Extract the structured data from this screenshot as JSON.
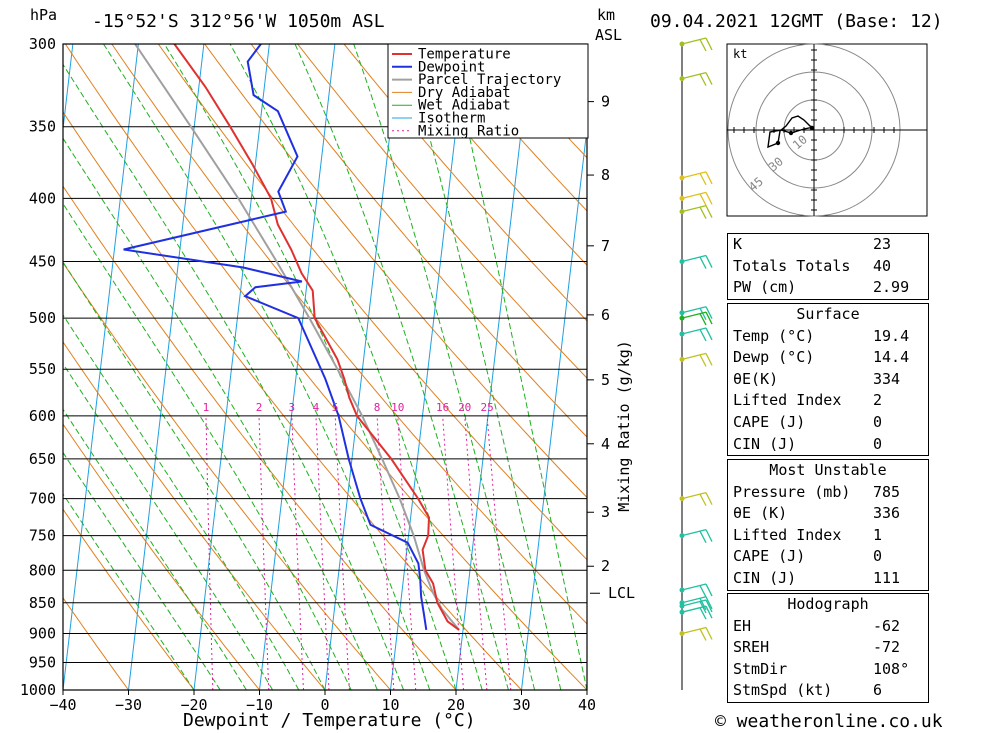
{
  "header": {
    "pressure_unit": "hPa",
    "location": "-15°52'S  312°56'W  1050m  ASL",
    "km_label": "km",
    "asl_label": "ASL",
    "datetime": "09.04.2021  12GMT  (Base: 12)"
  },
  "footer": {
    "copyright": "© weatheronline.co.uk"
  },
  "chart_data": {
    "type": "line",
    "title": "-15°52'S  312°56'W  1050m  ASL",
    "xlabel": "Dewpoint / Temperature (°C)",
    "ylabel": "hPa",
    "secondary_ylabel": "Mixing Ratio (g/kg)",
    "xlim": [
      -40,
      40
    ],
    "ylim": [
      1000,
      300
    ],
    "skew_per_log_p": 62.6,
    "x_ticks": [
      -40,
      -30,
      -20,
      -10,
      0,
      10,
      20,
      30,
      40
    ],
    "pressure_levels": [
      300,
      350,
      400,
      450,
      500,
      550,
      600,
      650,
      700,
      750,
      800,
      850,
      900,
      950,
      1000
    ],
    "km_ticks": [
      {
        "label": "2",
        "p": 794
      },
      {
        "label": "3",
        "p": 718
      },
      {
        "label": "4",
        "p": 632
      },
      {
        "label": "5",
        "p": 561
      },
      {
        "label": "6",
        "p": 497
      },
      {
        "label": "7",
        "p": 437
      },
      {
        "label": "8",
        "p": 383
      },
      {
        "label": "9",
        "p": 334
      }
    ],
    "lcl": {
      "label": "LCL",
      "p": 835
    },
    "mixing_ratio_labels": [
      "1",
      "2",
      "3",
      "4",
      "5",
      "8",
      "10",
      "16",
      "20",
      "25"
    ],
    "mixing_ratio_values": [
      1,
      2,
      3,
      4,
      5,
      8,
      10,
      16,
      20,
      25
    ],
    "legend": [
      "Temperature",
      "Dewpoint",
      "Parcel Trajectory",
      "Dry Adiabat",
      "Wet Adiabat",
      "Isotherm",
      "Mixing Ratio"
    ],
    "legend_placement": "top-center",
    "colors": {
      "temperature": "#e03030",
      "dewpoint": "#2030e0",
      "parcel": "#a0a0a0",
      "dry_adiabat": "#e08020",
      "wet_adiabat": "#20b020",
      "isotherm": "#20a0e0",
      "mixing_ratio": "#e020a0"
    },
    "series": [
      {
        "name": "Temperature",
        "points": [
          [
            894,
            19.4
          ],
          [
            880,
            17.5
          ],
          [
            850,
            15.6
          ],
          [
            820,
            14.6
          ],
          [
            800,
            13.2
          ],
          [
            770,
            12.4
          ],
          [
            750,
            13.0
          ],
          [
            725,
            12.8
          ],
          [
            700,
            10.8
          ],
          [
            650,
            6.0
          ],
          [
            600,
            0.0
          ],
          [
            580,
            -1.5
          ],
          [
            560,
            -2.6
          ],
          [
            540,
            -4.0
          ],
          [
            500,
            -8.2
          ],
          [
            475,
            -9.0
          ],
          [
            460,
            -11.0
          ],
          [
            440,
            -13.0
          ],
          [
            420,
            -15.5
          ],
          [
            400,
            -17.0
          ],
          [
            375,
            -20.5
          ],
          [
            350,
            -24.5
          ],
          [
            325,
            -29.0
          ],
          [
            300,
            -34.5
          ]
        ]
      },
      {
        "name": "Dewpoint",
        "points": [
          [
            894,
            14.4
          ],
          [
            870,
            13.8
          ],
          [
            840,
            13.0
          ],
          [
            815,
            12.6
          ],
          [
            790,
            12.0
          ],
          [
            760,
            10.0
          ],
          [
            735,
            4.0
          ],
          [
            700,
            2.0
          ],
          [
            650,
            -0.5
          ],
          [
            600,
            -2.8
          ],
          [
            560,
            -5.5
          ],
          [
            500,
            -10.7
          ],
          [
            480,
            -19.2
          ],
          [
            472,
            -17.8
          ],
          [
            467,
            -10.8
          ],
          [
            455,
            -20.0
          ],
          [
            440,
            -38.6
          ],
          [
            410,
            -14.5
          ],
          [
            395,
            -16.0
          ],
          [
            370,
            -13.7
          ],
          [
            340,
            -17.5
          ],
          [
            330,
            -21.5
          ],
          [
            310,
            -23.0
          ],
          [
            300,
            -21.3
          ]
        ]
      },
      {
        "name": "Parcel Trajectory",
        "points": [
          [
            894,
            19.4
          ],
          [
            860,
            16.4
          ],
          [
            835,
            14.8
          ],
          [
            800,
            13.0
          ],
          [
            750,
            10.8
          ],
          [
            700,
            8.0
          ],
          [
            650,
            4.6
          ],
          [
            600,
            0.8
          ],
          [
            550,
            -3.8
          ],
          [
            500,
            -9.0
          ],
          [
            450,
            -15.0
          ],
          [
            400,
            -22.0
          ],
          [
            350,
            -30.5
          ],
          [
            300,
            -40.5
          ]
        ]
      }
    ]
  },
  "hodograph": {
    "unit": "kt",
    "ring_labels": [
      "10",
      "30",
      "45"
    ]
  },
  "wind_profile": {
    "barb_pressures": [
      300,
      320,
      385,
      400,
      410,
      450,
      495,
      500,
      515,
      540,
      700,
      750,
      830,
      850,
      855,
      865,
      900
    ],
    "barb_colors": [
      "#a0c020",
      "#a0c020",
      "#e0c020",
      "#e0c020",
      "#a0c020",
      "#20c0a0",
      "#20c0a0",
      "#20b020",
      "#20c0a0",
      "#c0c020",
      "#c0c020",
      "#20c0a0",
      "#20c0a0",
      "#20c0a0",
      "#20c0a0",
      "#20c0a0",
      "#c0c020"
    ]
  },
  "indices": {
    "top": [
      {
        "label": "K",
        "value": "23"
      },
      {
        "label": "Totals Totals",
        "value": "40"
      },
      {
        "label": "PW (cm)",
        "value": "2.99"
      }
    ],
    "surface": {
      "title": "Surface",
      "rows": [
        {
          "label": "Temp (°C)",
          "value": "19.4"
        },
        {
          "label": "Dewp (°C)",
          "value": "14.4"
        },
        {
          "label": "θE(K)",
          "value": "334"
        },
        {
          "label": "Lifted Index",
          "value": "2"
        },
        {
          "label": "CAPE (J)",
          "value": "0"
        },
        {
          "label": "CIN (J)",
          "value": "0"
        }
      ]
    },
    "most_unstable": {
      "title": "Most Unstable",
      "rows": [
        {
          "label": "Pressure (mb)",
          "value": "785"
        },
        {
          "label": "θE (K)",
          "value": "336"
        },
        {
          "label": "Lifted Index",
          "value": "1"
        },
        {
          "label": "CAPE (J)",
          "value": "0"
        },
        {
          "label": "CIN (J)",
          "value": "111"
        }
      ]
    },
    "hodograph": {
      "title": "Hodograph",
      "rows": [
        {
          "label": "EH",
          "value": "-62"
        },
        {
          "label": "SREH",
          "value": "-72"
        },
        {
          "label": "StmDir",
          "value": "108°"
        },
        {
          "label": "StmSpd (kt)",
          "value": "6"
        }
      ]
    }
  }
}
